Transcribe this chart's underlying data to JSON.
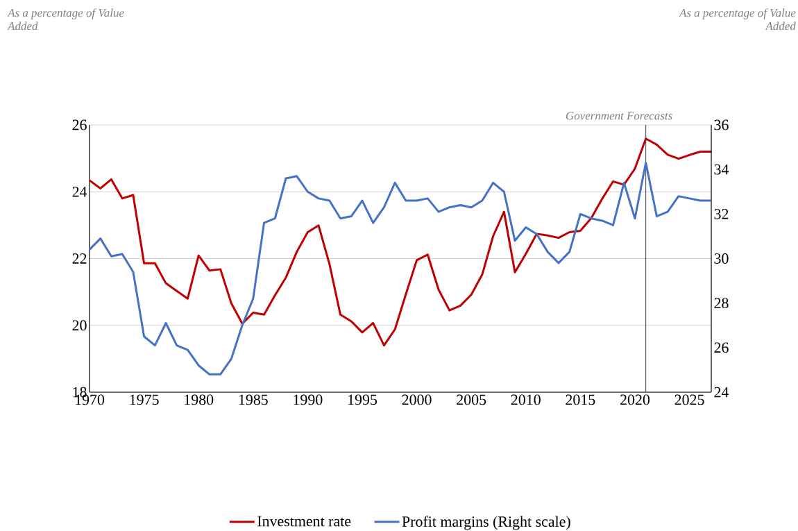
{
  "chart_data": {
    "type": "line",
    "annotations": [
      "As a percentage of Value Added",
      "As a percentage of Value Added"
    ],
    "x": [
      1970,
      1971,
      1972,
      1973,
      1974,
      1975,
      1976,
      1977,
      1978,
      1979,
      1980,
      1981,
      1982,
      1983,
      1984,
      1985,
      1986,
      1987,
      1988,
      1989,
      1990,
      1991,
      1992,
      1993,
      1994,
      1995,
      1996,
      1997,
      1998,
      1999,
      2000,
      2001,
      2002,
      2003,
      2004,
      2005,
      2006,
      2007,
      2008,
      2009,
      2010,
      2011,
      2012,
      2013,
      2014,
      2015,
      2016,
      2017,
      2018,
      2019,
      2020,
      2021,
      2022,
      2023,
      2024,
      2025,
      2026,
      2027
    ],
    "series": [
      {
        "name": "Investment rate",
        "color": "#c00000",
        "values": [
          24.34,
          24.1,
          24.37,
          23.8,
          23.9,
          21.86,
          21.86,
          21.26,
          21.03,
          20.8,
          22.09,
          21.64,
          21.68,
          20.66,
          20.05,
          20.38,
          20.32,
          20.9,
          21.43,
          22.2,
          22.79,
          22.99,
          21.83,
          20.32,
          20.12,
          19.79,
          20.07,
          19.4,
          19.88,
          20.93,
          21.95,
          22.12,
          21.07,
          20.45,
          20.59,
          20.92,
          21.52,
          22.67,
          23.4,
          21.59,
          22.14,
          22.74,
          22.69,
          22.62,
          22.79,
          22.83,
          23.21,
          23.79,
          24.31,
          24.21,
          24.69,
          25.59,
          25.41,
          25.11,
          24.99,
          25.1,
          25.2,
          25.2
        ]
      },
      {
        "name": "Profit margins (Right scale)",
        "color": "#4472c4",
        "axis": "y2",
        "values": [
          30.4,
          30.9,
          30.1,
          30.2,
          29.4,
          26.5,
          26.1,
          27.1,
          26.1,
          25.9,
          25.2,
          24.8,
          24.8,
          25.5,
          27.0,
          28.2,
          31.6,
          31.8,
          33.6,
          33.7,
          33.0,
          32.7,
          32.6,
          31.8,
          31.9,
          32.6,
          31.6,
          32.3,
          33.4,
          32.6,
          32.6,
          32.7,
          32.1,
          32.3,
          32.4,
          32.3,
          32.6,
          33.4,
          33.0,
          30.8,
          31.4,
          31.1,
          30.3,
          29.8,
          30.3,
          32.0,
          31.8,
          31.7,
          31.5,
          33.4,
          31.8,
          34.3,
          31.9,
          32.1,
          32.8,
          32.7,
          32.6,
          32.6
        ]
      }
    ],
    "xlim": [
      1970,
      2027
    ],
    "xticks": [
      1970,
      1975,
      1980,
      1985,
      1990,
      1995,
      2000,
      2005,
      2010,
      2015,
      2020,
      2025
    ],
    "ylim": [
      18,
      26
    ],
    "yticks": [
      18,
      20,
      22,
      24,
      26
    ],
    "y2lim": [
      24,
      36
    ],
    "y2ticks": [
      24,
      26,
      28,
      30,
      32,
      34,
      36
    ],
    "ref_lines": [
      {
        "axis": "x",
        "value": 2021,
        "label": "Government Forecasts",
        "color": "#404040"
      }
    ],
    "grid": "y",
    "legend": "bottom"
  }
}
